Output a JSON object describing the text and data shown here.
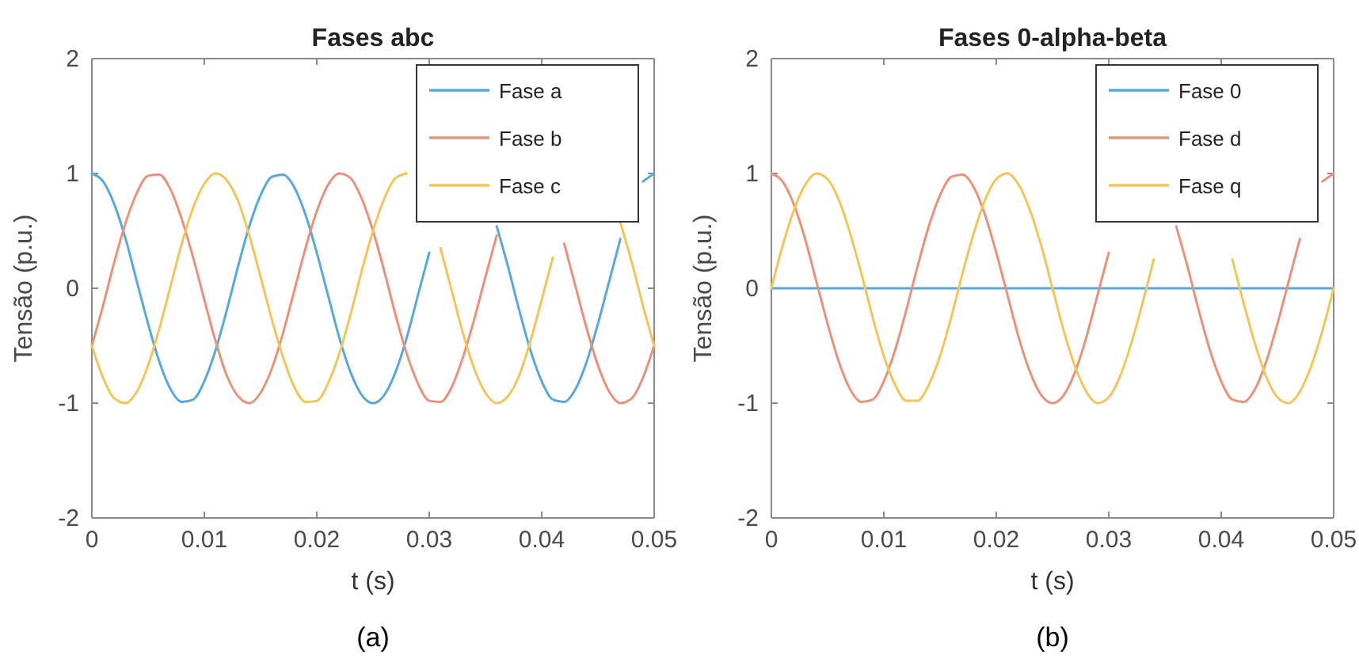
{
  "chart_data": [
    {
      "type": "line",
      "title": "Fases abc",
      "xlabel": "t (s)",
      "ylabel": "Tensão (p.u.)",
      "legend": "top right",
      "annotations": [
        "(a)"
      ],
      "xlim": [
        0,
        0.05
      ],
      "ylim": [
        -2,
        2
      ],
      "xticks": [
        0,
        0.01,
        0.02,
        0.03,
        0.04,
        0.05
      ],
      "yticks": [
        -2,
        -1,
        0,
        1,
        2
      ],
      "x": [
        0,
        0.001,
        0.002,
        0.003,
        0.004,
        0.005,
        0.006,
        0.007,
        0.008,
        0.009,
        0.01,
        0.011,
        0.012,
        0.013,
        0.014,
        0.015,
        0.016,
        0.017,
        0.018,
        0.019,
        0.02,
        0.021,
        0.022,
        0.023,
        0.024,
        0.025,
        0.026,
        0.027,
        0.028,
        0.029,
        0.03,
        0.031,
        0.032,
        0.033,
        0.034,
        0.035,
        0.036,
        0.037,
        0.038,
        0.039,
        0.04,
        0.041,
        0.042,
        0.043,
        0.044,
        0.045,
        0.046,
        0.047,
        0.048,
        0.049,
        0.05
      ],
      "series": [
        {
          "name": "Fase a",
          "color": "#5aa8d8",
          "values": [
            1.0,
            0.93,
            0.73,
            0.43,
            0.06,
            -0.31,
            -0.64,
            -0.88,
            -0.99,
            -0.97,
            -0.81,
            -0.54,
            -0.19,
            0.19,
            0.54,
            0.81,
            0.97,
            0.99,
            0.88,
            0.64,
            0.31,
            -0.06,
            -0.43,
            -0.73,
            -0.93,
            -1.0,
            -0.93,
            -0.73,
            -0.43,
            -0.06,
            0.31,
            null,
            null,
            null,
            null,
            null,
            0.54,
            0.19,
            -0.19,
            -0.54,
            -0.81,
            -0.97,
            -0.99,
            -0.88,
            -0.64,
            -0.31,
            0.06,
            0.43,
            null,
            0.93,
            1.0
          ]
        },
        {
          "name": "Fase b",
          "color": "#e8927c",
          "values": [
            -0.5,
            -0.15,
            0.23,
            0.57,
            0.83,
            0.98,
            0.99,
            0.86,
            0.6,
            0.27,
            -0.1,
            -0.46,
            -0.76,
            -0.94,
            -1.0,
            -0.91,
            -0.7,
            -0.39,
            -0.02,
            0.35,
            0.67,
            0.9,
            1.0,
            0.96,
            0.78,
            0.5,
            0.15,
            -0.23,
            -0.57,
            -0.83,
            -0.98,
            -0.99,
            -0.86,
            -0.6,
            -0.27,
            0.1,
            0.46,
            null,
            null,
            null,
            null,
            null,
            0.39,
            0.02,
            -0.35,
            -0.67,
            -0.9,
            -1.0,
            -0.96,
            -0.78,
            -0.5
          ]
        },
        {
          "name": "Fase c",
          "color": "#f0c65c",
          "values": [
            -0.5,
            -0.78,
            -0.96,
            -1.0,
            -0.9,
            -0.67,
            -0.35,
            0.02,
            0.39,
            0.7,
            0.91,
            1.0,
            0.94,
            0.76,
            0.46,
            0.1,
            -0.27,
            -0.6,
            -0.86,
            -0.99,
            -0.98,
            -0.83,
            -0.57,
            -0.23,
            0.15,
            0.5,
            0.78,
            0.96,
            1.0,
            null,
            null,
            0.35,
            -0.02,
            -0.39,
            -0.7,
            -0.91,
            -1.0,
            -0.94,
            -0.76,
            -0.46,
            -0.1,
            0.27,
            null,
            null,
            null,
            null,
            null,
            0.57,
            0.23,
            -0.15,
            -0.5
          ]
        }
      ]
    },
    {
      "type": "line",
      "title": "Fases 0-alpha-beta",
      "xlabel": "t (s)",
      "ylabel": "Tensão (p.u.)",
      "legend": "top right",
      "annotations": [
        "(b)"
      ],
      "xlim": [
        0,
        0.05
      ],
      "ylim": [
        -2,
        2
      ],
      "xticks": [
        0,
        0.01,
        0.02,
        0.03,
        0.04,
        0.05
      ],
      "yticks": [
        -2,
        -1,
        0,
        1,
        2
      ],
      "x": [
        0,
        0.001,
        0.002,
        0.003,
        0.004,
        0.005,
        0.006,
        0.007,
        0.008,
        0.009,
        0.01,
        0.011,
        0.012,
        0.013,
        0.014,
        0.015,
        0.016,
        0.017,
        0.018,
        0.019,
        0.02,
        0.021,
        0.022,
        0.023,
        0.024,
        0.025,
        0.026,
        0.027,
        0.028,
        0.029,
        0.03,
        0.031,
        0.032,
        0.033,
        0.034,
        0.035,
        0.036,
        0.037,
        0.038,
        0.039,
        0.04,
        0.041,
        0.042,
        0.043,
        0.044,
        0.045,
        0.046,
        0.047,
        0.048,
        0.049,
        0.05
      ],
      "series": [
        {
          "name": "Fase 0",
          "color": "#5aa8d8",
          "x": [
            0,
            0.05
          ],
          "values": [
            0,
            0
          ]
        },
        {
          "name": "Fase d",
          "color": "#e8927c",
          "values": [
            1.0,
            0.93,
            0.73,
            0.43,
            0.06,
            -0.31,
            -0.64,
            -0.88,
            -0.99,
            -0.97,
            -0.81,
            -0.54,
            -0.19,
            0.19,
            0.54,
            0.81,
            0.97,
            0.99,
            0.88,
            0.64,
            0.31,
            -0.06,
            -0.43,
            -0.73,
            -0.93,
            -1.0,
            -0.93,
            -0.73,
            -0.43,
            -0.06,
            0.31,
            null,
            null,
            null,
            null,
            null,
            0.54,
            0.19,
            -0.19,
            -0.54,
            -0.81,
            -0.97,
            -0.99,
            -0.88,
            -0.64,
            -0.31,
            0.06,
            0.43,
            null,
            0.93,
            1.0
          ]
        },
        {
          "name": "Fase q",
          "color": "#f0c65c",
          "values": [
            0.0,
            0.37,
            0.68,
            0.9,
            1.0,
            0.95,
            0.77,
            0.48,
            0.13,
            -0.25,
            -0.59,
            -0.84,
            -0.98,
            -0.98,
            -0.84,
            -0.59,
            -0.25,
            0.13,
            0.48,
            0.77,
            0.95,
            1.0,
            0.9,
            0.68,
            0.37,
            0.0,
            -0.37,
            -0.68,
            -0.9,
            -1.0,
            -0.95,
            -0.77,
            -0.48,
            -0.13,
            0.25,
            null,
            null,
            null,
            null,
            null,
            null,
            0.25,
            -0.13,
            -0.48,
            -0.77,
            -0.95,
            -1.0,
            -0.9,
            -0.68,
            -0.37,
            0.0
          ]
        }
      ]
    }
  ]
}
